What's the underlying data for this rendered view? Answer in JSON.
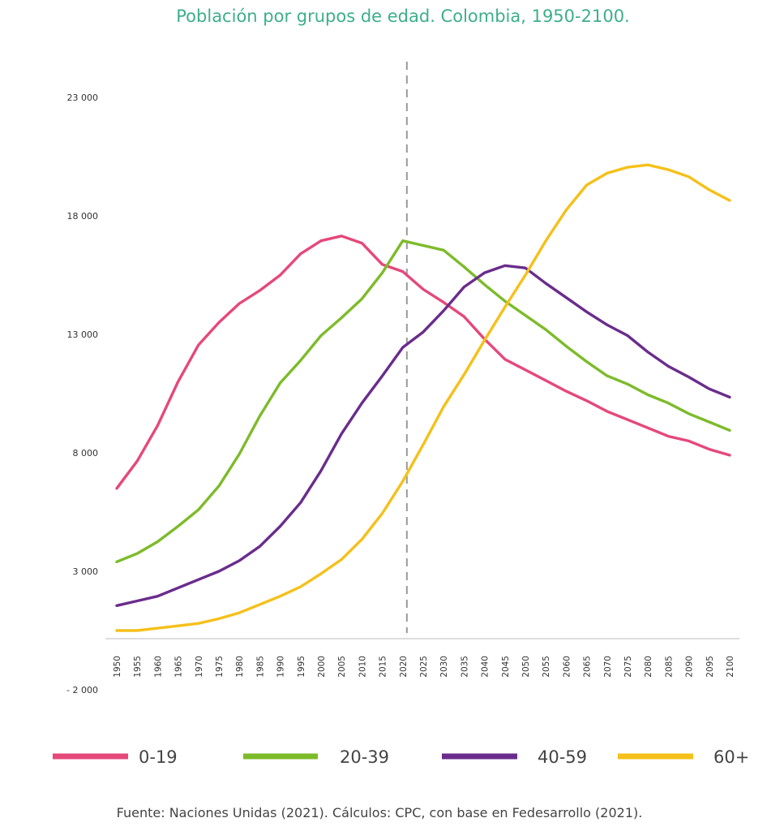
{
  "chart_data": {
    "type": "line",
    "title": "Población por grupos de edad. Colombia, 1950-2100.",
    "title_color": "#3daf8a",
    "source": "Fuente: Naciones Unidas (2021). Cálculos: CPC,  con base en Fedesarrollo (2021).",
    "xlabel": "",
    "ylabel": "",
    "x": [
      "1950",
      "1955",
      "1960",
      "1965",
      "1970",
      "1975",
      "1980",
      "1985",
      "1990",
      "1995",
      "2000",
      "2005",
      "2010",
      "2015",
      "2020",
      "2025",
      "2030",
      "2035",
      "2040",
      "2045",
      "2050",
      "2055",
      "2060",
      "2065",
      "2070",
      "2075",
      "2080",
      "2085",
      "2090",
      "2095",
      "2100"
    ],
    "ylim": [
      -2000,
      23000
    ],
    "yticks": [
      -2000,
      3000,
      8000,
      13000,
      18000,
      23000
    ],
    "ytick_labels": [
      "- 2 000",
      "3 000",
      "8 000",
      "13 000",
      "18 000",
      "23 000"
    ],
    "grid": false,
    "reference_line": {
      "x": 2021,
      "style": "dashed"
    },
    "legend_position": "bottom",
    "series": [
      {
        "name": "0-19",
        "color": "#e5487a",
        "values": [
          6500,
          7650,
          9150,
          11000,
          12550,
          13500,
          14300,
          14850,
          15500,
          16400,
          16950,
          17150,
          16850,
          15950,
          15650,
          14900,
          14350,
          13750,
          12800,
          11950,
          11500,
          11050,
          10600,
          10200,
          9750,
          9400,
          9050,
          8700,
          8500,
          8150,
          7900
        ]
      },
      {
        "name": "20-39",
        "color": "#7dbb2a",
        "values": [
          3400,
          3750,
          4250,
          4900,
          5600,
          6600,
          7950,
          9550,
          10950,
          11900,
          12950,
          13700,
          14500,
          15600,
          16950,
          16750,
          16550,
          15850,
          15100,
          14400,
          13800,
          13200,
          12500,
          11850,
          11250,
          10900,
          10450,
          10100,
          9650,
          9300,
          8950
        ]
      },
      {
        "name": "40-59",
        "color": "#6a2c8c",
        "values": [
          1550,
          1750,
          1950,
          2300,
          2650,
          3000,
          3450,
          4050,
          4900,
          5900,
          7250,
          8800,
          10100,
          11250,
          12450,
          13100,
          14000,
          15000,
          15600,
          15900,
          15800,
          15150,
          14550,
          13950,
          13400,
          12950,
          12250,
          11650,
          11200,
          10700,
          10350
        ]
      },
      {
        "name": "60+",
        "color": "#f5c01a",
        "values": [
          500,
          500,
          600,
          700,
          800,
          1000,
          1250,
          1600,
          1950,
          2350,
          2900,
          3500,
          4350,
          5450,
          6800,
          8350,
          9950,
          11300,
          12750,
          14150,
          15500,
          16950,
          18250,
          19300,
          19800,
          20050,
          20150,
          19950,
          19650,
          19100,
          18650
        ]
      }
    ]
  }
}
